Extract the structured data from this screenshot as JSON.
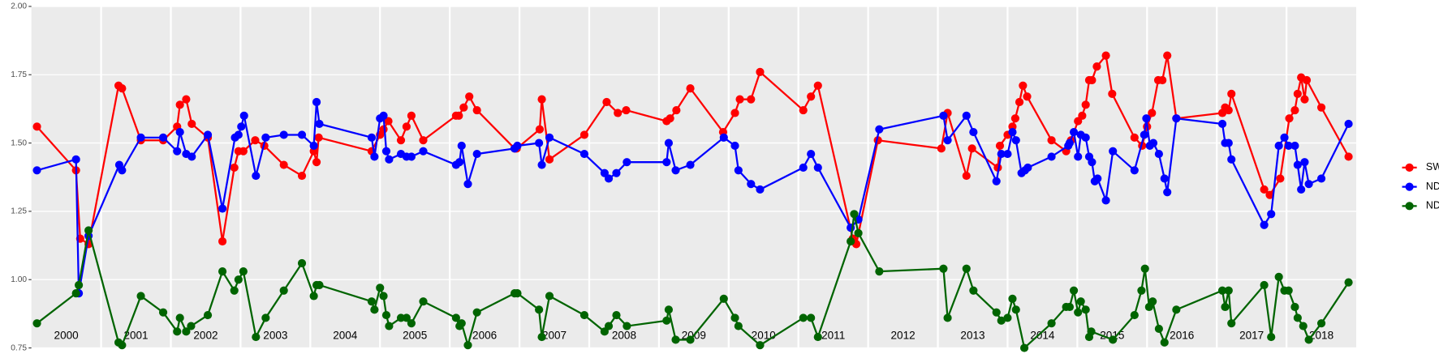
{
  "chart_data": {
    "type": "line",
    "xlim": [
      2000,
      2019
    ],
    "ylim": [
      0.75,
      2
    ],
    "yticks": [
      0.75,
      {
        "value": 1,
        "label": "1.00"
      },
      1.25,
      {
        "value": 1.5,
        "label": "1.50"
      },
      1.75,
      {
        "value": 2,
        "label": "2.00"
      }
    ],
    "xticks": [
      {
        "value": 2000.5,
        "label": "2000"
      },
      {
        "value": 2001.5,
        "label": "2001"
      },
      {
        "value": 2002.5,
        "label": "2002"
      },
      {
        "value": 2003.5,
        "label": "2003"
      },
      {
        "value": 2004.5,
        "label": "2004"
      },
      {
        "value": 2005.5,
        "label": "2005"
      },
      {
        "value": 2006.5,
        "label": "2006"
      },
      {
        "value": 2007.5,
        "label": "2007"
      },
      {
        "value": 2008.5,
        "label": "2008"
      },
      {
        "value": 2009.5,
        "label": "2009"
      },
      {
        "value": 2010.5,
        "label": "2010"
      },
      {
        "value": 2011.5,
        "label": "2011"
      },
      {
        "value": 2012.5,
        "label": "2012"
      },
      {
        "value": 2013.5,
        "label": "2013"
      },
      {
        "value": 2014.5,
        "label": "2014"
      },
      {
        "value": 2015.5,
        "label": "2015"
      },
      {
        "value": 2016.5,
        "label": "2016"
      },
      {
        "value": 2017.5,
        "label": "2017"
      },
      {
        "value": 2018.5,
        "label": "2018"
      }
    ],
    "xgrid": [
      2001,
      2002,
      2003,
      2004,
      2005,
      2006,
      2007,
      2008,
      2009,
      2010,
      2011,
      2012,
      2013,
      2014,
      2015,
      2016,
      2017,
      2018
    ],
    "grid": true,
    "legend": "right",
    "series": [
      {
        "name": "SWIR",
        "color": "#ff0000",
        "x": [
          2000.08,
          2000.64,
          2000.7,
          2000.82,
          2001.25,
          2001.3,
          2001.57,
          2001.89,
          2002.09,
          2002.13,
          2002.22,
          2002.3,
          2002.53,
          2002.74,
          2002.91,
          2002.97,
          2003.04,
          2003.21,
          2003.34,
          2003.62,
          2003.88,
          2004.05,
          2004.09,
          2004.12,
          2004.88,
          2005.0,
          2005.05,
          2005.12,
          2005.3,
          2005.38,
          2005.45,
          2005.62,
          2006.09,
          2006.13,
          2006.2,
          2006.28,
          2006.39,
          2006.93,
          2006.96,
          2007.29,
          2007.32,
          2007.43,
          2007.93,
          2008.25,
          2008.41,
          2008.53,
          2009.11,
          2009.16,
          2009.25,
          2009.45,
          2009.92,
          2010.09,
          2010.16,
          2010.32,
          2010.45,
          2011.07,
          2011.18,
          2011.28,
          2011.78,
          2011.83,
          2012.14,
          2013.05,
          2013.14,
          2013.41,
          2013.49,
          2013.86,
          2013.89,
          2014.0,
          2014.07,
          2014.11,
          2014.17,
          2014.22,
          2014.28,
          2014.63,
          2014.84,
          2014.91,
          2015.01,
          2015.07,
          2015.12,
          2015.17,
          2015.21,
          2015.28,
          2015.41,
          2015.5,
          2015.82,
          2015.93,
          2016.0,
          2016.07,
          2016.16,
          2016.22,
          2016.29,
          2016.42,
          2017.08,
          2017.12,
          2017.17,
          2017.21,
          2017.68,
          2017.76,
          2017.91,
          2018.04,
          2018.12,
          2018.16,
          2018.21,
          2018.26,
          2018.29,
          2018.5,
          2018.89
        ],
        "values": [
          1.56,
          1.4,
          1.15,
          1.13,
          1.71,
          1.7,
          1.51,
          1.51,
          1.56,
          1.64,
          1.66,
          1.57,
          1.52,
          1.14,
          1.41,
          1.47,
          1.47,
          1.51,
          1.49,
          1.42,
          1.38,
          1.47,
          1.43,
          1.52,
          1.47,
          1.53,
          1.55,
          1.58,
          1.51,
          1.56,
          1.6,
          1.51,
          1.6,
          1.6,
          1.63,
          1.67,
          1.62,
          1.48,
          1.48,
          1.55,
          1.66,
          1.44,
          1.53,
          1.65,
          1.61,
          1.62,
          1.58,
          1.59,
          1.62,
          1.7,
          1.54,
          1.61,
          1.66,
          1.66,
          1.76,
          1.62,
          1.67,
          1.71,
          1.15,
          1.13,
          1.51,
          1.48,
          1.61,
          1.38,
          1.48,
          1.41,
          1.49,
          1.53,
          1.56,
          1.59,
          1.65,
          1.71,
          1.67,
          1.51,
          1.47,
          1.51,
          1.58,
          1.6,
          1.64,
          1.73,
          1.73,
          1.78,
          1.82,
          1.68,
          1.52,
          1.49,
          1.56,
          1.61,
          1.73,
          1.73,
          1.82,
          1.59,
          1.61,
          1.63,
          1.62,
          1.68,
          1.33,
          1.31,
          1.37,
          1.59,
          1.62,
          1.68,
          1.74,
          1.66,
          1.73,
          1.63,
          1.45
        ]
      },
      {
        "name": "NDVI",
        "color": "#0000ff",
        "x": [
          2000.08,
          2000.64,
          2000.68,
          2000.82,
          2001.26,
          2001.3,
          2001.57,
          2001.89,
          2002.09,
          2002.13,
          2002.22,
          2002.3,
          2002.53,
          2002.74,
          2002.92,
          2002.97,
          2003.01,
          2003.05,
          2003.22,
          2003.36,
          2003.62,
          2003.88,
          2004.05,
          2004.09,
          2004.13,
          2004.88,
          2004.92,
          2005.0,
          2005.05,
          2005.09,
          2005.13,
          2005.3,
          2005.38,
          2005.45,
          2005.62,
          2006.09,
          2006.14,
          2006.17,
          2006.26,
          2006.39,
          2006.93,
          2006.97,
          2007.28,
          2007.32,
          2007.43,
          2007.93,
          2008.22,
          2008.28,
          2008.39,
          2008.54,
          2009.11,
          2009.14,
          2009.24,
          2009.45,
          2009.93,
          2010.09,
          2010.14,
          2010.32,
          2010.45,
          2011.07,
          2011.18,
          2011.28,
          2011.75,
          2011.86,
          2012.16,
          2013.08,
          2013.14,
          2013.41,
          2013.51,
          2013.84,
          2013.91,
          2014.0,
          2014.07,
          2014.12,
          2014.2,
          2014.25,
          2014.29,
          2014.63,
          2014.87,
          2014.89,
          2014.95,
          2015.01,
          2015.05,
          2015.12,
          2015.17,
          2015.21,
          2015.25,
          2015.29,
          2015.41,
          2015.51,
          2015.82,
          2015.96,
          2015.99,
          2016.04,
          2016.09,
          2016.17,
          2016.25,
          2016.29,
          2016.42,
          2017.08,
          2017.12,
          2017.17,
          2017.21,
          2017.68,
          2017.78,
          2017.89,
          2017.97,
          2018.03,
          2018.12,
          2018.16,
          2018.21,
          2018.26,
          2018.32,
          2018.5,
          2018.89
        ],
        "values": [
          1.4,
          1.44,
          0.95,
          1.16,
          1.42,
          1.4,
          1.52,
          1.52,
          1.47,
          1.54,
          1.46,
          1.45,
          1.53,
          1.26,
          1.52,
          1.53,
          1.56,
          1.6,
          1.38,
          1.52,
          1.53,
          1.53,
          1.49,
          1.65,
          1.57,
          1.52,
          1.45,
          1.59,
          1.6,
          1.47,
          1.44,
          1.46,
          1.45,
          1.45,
          1.47,
          1.42,
          1.43,
          1.49,
          1.35,
          1.46,
          1.48,
          1.49,
          1.5,
          1.42,
          1.52,
          1.46,
          1.39,
          1.37,
          1.39,
          1.43,
          1.43,
          1.5,
          1.4,
          1.42,
          1.52,
          1.49,
          1.4,
          1.35,
          1.33,
          1.41,
          1.46,
          1.41,
          1.19,
          1.22,
          1.55,
          1.6,
          1.51,
          1.6,
          1.54,
          1.36,
          1.46,
          1.46,
          1.54,
          1.51,
          1.39,
          1.4,
          1.41,
          1.45,
          1.49,
          1.5,
          1.54,
          1.45,
          1.53,
          1.52,
          1.45,
          1.43,
          1.36,
          1.37,
          1.29,
          1.47,
          1.4,
          1.53,
          1.59,
          1.49,
          1.5,
          1.46,
          1.37,
          1.32,
          1.59,
          1.57,
          1.5,
          1.5,
          1.44,
          1.2,
          1.24,
          1.49,
          1.52,
          1.49,
          1.49,
          1.42,
          1.33,
          1.43,
          1.35,
          1.37,
          1.57
        ]
      },
      {
        "name": "NDWI",
        "color": "#006400",
        "x": [
          2000.08,
          2000.64,
          2000.68,
          2000.82,
          2001.25,
          2001.3,
          2001.57,
          2001.89,
          2002.09,
          2002.13,
          2002.22,
          2002.29,
          2002.53,
          2002.74,
          2002.91,
          2002.97,
          2003.04,
          2003.22,
          2003.36,
          2003.62,
          2003.88,
          2004.05,
          2004.09,
          2004.13,
          2004.88,
          2004.92,
          2005.0,
          2005.05,
          2005.09,
          2005.13,
          2005.3,
          2005.38,
          2005.45,
          2005.62,
          2006.09,
          2006.14,
          2006.17,
          2006.26,
          2006.39,
          2006.93,
          2006.97,
          2007.28,
          2007.32,
          2007.43,
          2007.93,
          2008.22,
          2008.28,
          2008.39,
          2008.54,
          2009.11,
          2009.14,
          2009.24,
          2009.45,
          2009.93,
          2010.09,
          2010.14,
          2010.45,
          2011.07,
          2011.18,
          2011.28,
          2011.75,
          2011.8,
          2011.86,
          2012.16,
          2013.08,
          2013.14,
          2013.41,
          2013.51,
          2013.84,
          2013.91,
          2014.0,
          2014.07,
          2014.12,
          2014.24,
          2014.63,
          2014.84,
          2014.89,
          2014.95,
          2015.01,
          2015.05,
          2015.12,
          2015.17,
          2015.2,
          2015.51,
          2015.82,
          2015.92,
          2015.97,
          2016.03,
          2016.08,
          2016.17,
          2016.25,
          2016.42,
          2017.08,
          2017.12,
          2017.17,
          2017.21,
          2017.68,
          2017.78,
          2017.89,
          2017.97,
          2018.03,
          2018.12,
          2018.16,
          2018.24,
          2018.32,
          2018.5,
          2018.89
        ],
        "values": [
          0.84,
          0.95,
          0.98,
          1.18,
          0.77,
          0.76,
          0.94,
          0.88,
          0.81,
          0.86,
          0.81,
          0.83,
          0.87,
          1.03,
          0.96,
          1.0,
          1.03,
          0.79,
          0.86,
          0.96,
          1.06,
          0.94,
          0.98,
          0.98,
          0.92,
          0.89,
          0.97,
          0.94,
          0.87,
          0.83,
          0.86,
          0.86,
          0.84,
          0.92,
          0.86,
          0.83,
          0.84,
          0.76,
          0.88,
          0.95,
          0.95,
          0.89,
          0.79,
          0.94,
          0.87,
          0.81,
          0.83,
          0.87,
          0.83,
          0.85,
          0.89,
          0.78,
          0.78,
          0.93,
          0.86,
          0.83,
          0.76,
          0.86,
          0.86,
          0.79,
          1.14,
          1.24,
          1.17,
          1.03,
          1.04,
          0.86,
          1.04,
          0.96,
          0.88,
          0.85,
          0.86,
          0.93,
          0.89,
          0.75,
          0.84,
          0.9,
          0.9,
          0.96,
          0.88,
          0.92,
          0.89,
          0.79,
          0.81,
          0.78,
          0.87,
          0.96,
          1.04,
          0.9,
          0.92,
          0.82,
          0.77,
          0.89,
          0.96,
          0.9,
          0.96,
          0.84,
          0.98,
          0.79,
          1.01,
          0.96,
          0.96,
          0.9,
          0.86,
          0.83,
          0.78,
          0.84,
          0.99
        ]
      }
    ]
  }
}
